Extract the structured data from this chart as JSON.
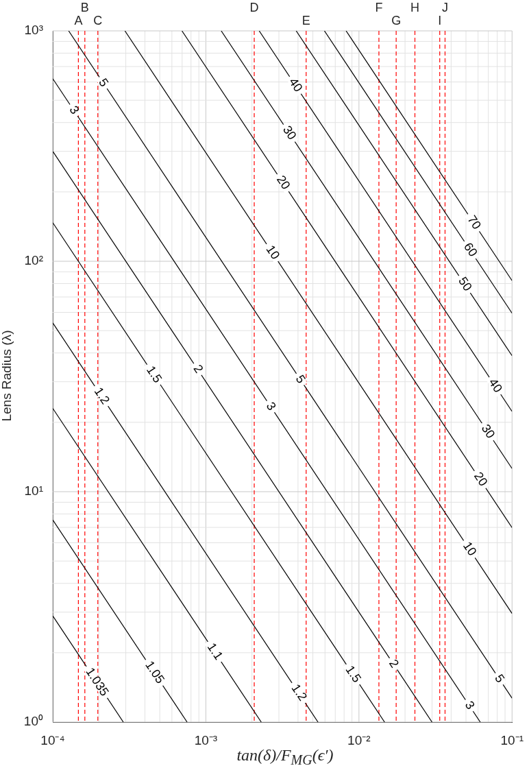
{
  "chart_data": {
    "type": "line",
    "xlabel": "tan(δ)/F$_{MG}$(ϵ′)",
    "ylabel": "Lens Radius (λ)",
    "log": "xy",
    "grid": true,
    "legend": false,
    "marker": "none",
    "line_style": "solid",
    "xlim": [
      0.0001,
      0.1
    ],
    "ylim": [
      1,
      1000
    ],
    "xticks": [
      {
        "value": 0.0001,
        "label": "10⁻⁴"
      },
      {
        "value": 0.001,
        "label": "10⁻³"
      },
      {
        "value": 0.01,
        "label": "10⁻²"
      },
      {
        "value": 0.1,
        "label": "10⁻¹"
      }
    ],
    "yticks": [
      {
        "value": 1,
        "label": "10⁰"
      },
      {
        "value": 10,
        "label": "10¹"
      },
      {
        "value": 100,
        "label": "10²"
      },
      {
        "value": 1000,
        "label": "10³"
      }
    ],
    "series": [
      {
        "color": "#000000",
        "x": [
          0.0001,
          0.000289
        ],
        "values": [
          2.89,
          1
        ]
      },
      {
        "color": "#000000",
        "x": [
          0.0001,
          0.000754
        ],
        "values": [
          7.54,
          1
        ]
      },
      {
        "color": "#000000",
        "x": [
          0.0001,
          0.0023
        ],
        "values": [
          23,
          1
        ]
      },
      {
        "color": "#000000",
        "x": [
          0.0001,
          0.0054
        ],
        "values": [
          54,
          1
        ]
      },
      {
        "color": "#000000",
        "x": [
          0.0001,
          0.0147
        ],
        "values": [
          147,
          1
        ]
      },
      {
        "color": "#000000",
        "x": [
          0.0001,
          0.03
        ],
        "values": [
          300,
          1
        ]
      },
      {
        "color": "#000000",
        "x": [
          0.0001,
          0.062
        ],
        "values": [
          620,
          1
        ]
      },
      {
        "color": "#000000",
        "x": [
          0.000127,
          0.1
        ],
        "values": [
          1000,
          1.27
        ]
      },
      {
        "color": "#000000",
        "x": [
          0.000296,
          0.1
        ],
        "values": [
          1000,
          2.96
        ]
      },
      {
        "color": "#000000",
        "x": [
          0.000698,
          0.1
        ],
        "values": [
          1000,
          6.98
        ]
      },
      {
        "color": "#000000",
        "x": [
          0.00126,
          0.1
        ],
        "values": [
          1000,
          12.6
        ]
      },
      {
        "color": "#000000",
        "x": [
          0.00223,
          0.1
        ],
        "values": [
          1000,
          22.3
        ]
      },
      {
        "color": "#000000",
        "x": [
          0.00389,
          0.1
        ],
        "values": [
          1000,
          38.9
        ]
      },
      {
        "color": "#000000",
        "x": [
          0.00595,
          0.1
        ],
        "values": [
          1000,
          59.5
        ]
      },
      {
        "color": "#000000",
        "x": [
          0.00824,
          0.1
        ],
        "values": [
          1000,
          82.4
        ]
      }
    ],
    "annotations": [
      {
        "text": "1.035",
        "x": 0.000194,
        "y": 1.49
      },
      {
        "text": "1.05",
        "x": 0.000461,
        "y": 1.64
      },
      {
        "text": "1.1",
        "x": 0.00114,
        "y": 2.02
      },
      {
        "text": "1.2",
        "x": 0.000208,
        "y": 26
      },
      {
        "text": "1.2",
        "x": 0.00404,
        "y": 1.34
      },
      {
        "text": "1.5",
        "x": 0.000456,
        "y": 32.2
      },
      {
        "text": "1.5",
        "x": 0.00912,
        "y": 1.61
      },
      {
        "text": "2",
        "x": 0.000885,
        "y": 34
      },
      {
        "text": "2",
        "x": 0.0168,
        "y": 1.79
      },
      {
        "text": "3",
        "x": 0.000137,
        "y": 452
      },
      {
        "text": "3",
        "x": 0.00265,
        "y": 23.4
      },
      {
        "text": "3",
        "x": 0.0526,
        "y": 1.18
      },
      {
        "text": "5",
        "x": 0.000213,
        "y": 594
      },
      {
        "text": "5",
        "x": 0.00412,
        "y": 30.7
      },
      {
        "text": "5",
        "x": 0.0824,
        "y": 1.54
      },
      {
        "text": "10",
        "x": 0.00272,
        "y": 109
      },
      {
        "text": "10",
        "x": 0.0526,
        "y": 5.63
      },
      {
        "text": "20",
        "x": 0.00319,
        "y": 219
      },
      {
        "text": "20",
        "x": 0.062,
        "y": 11.3
      },
      {
        "text": "30",
        "x": 0.0035,
        "y": 360
      },
      {
        "text": "30",
        "x": 0.0693,
        "y": 18.2
      },
      {
        "text": "40",
        "x": 0.00384,
        "y": 581
      },
      {
        "text": "40",
        "x": 0.0774,
        "y": 28.8
      },
      {
        "text": "50",
        "x": 0.049,
        "y": 79.4
      },
      {
        "text": "60",
        "x": 0.0532,
        "y": 112
      },
      {
        "text": "70",
        "x": 0.0562,
        "y": 147
      }
    ],
    "ref_lines": [
      {
        "axis": "x",
        "value": 0.000147,
        "label": "A",
        "color": "#ff0000",
        "line_style": "dashed"
      },
      {
        "axis": "x",
        "value": 0.000162,
        "label": "B",
        "color": "#ff0000",
        "line_style": "dashed"
      },
      {
        "axis": "x",
        "value": 0.000197,
        "label": "C",
        "color": "#ff0000",
        "line_style": "dashed"
      },
      {
        "axis": "x",
        "value": 0.00207,
        "label": "D",
        "color": "#ff0000",
        "line_style": "dashed"
      },
      {
        "axis": "x",
        "value": 0.00452,
        "label": "E",
        "color": "#ff0000",
        "line_style": "dashed"
      },
      {
        "axis": "x",
        "value": 0.0135,
        "label": "F",
        "color": "#ff0000",
        "line_style": "dashed"
      },
      {
        "axis": "x",
        "value": 0.0175,
        "label": "G",
        "color": "#ff0000",
        "line_style": "dashed"
      },
      {
        "axis": "x",
        "value": 0.0232,
        "label": "H",
        "color": "#ff0000",
        "line_style": "dashed"
      },
      {
        "axis": "x",
        "value": 0.0337,
        "label": "I",
        "color": "#ff0000",
        "line_style": "dashed"
      },
      {
        "axis": "x",
        "value": 0.0365,
        "label": "J",
        "color": "#ff0000",
        "line_style": "dashed"
      }
    ]
  }
}
